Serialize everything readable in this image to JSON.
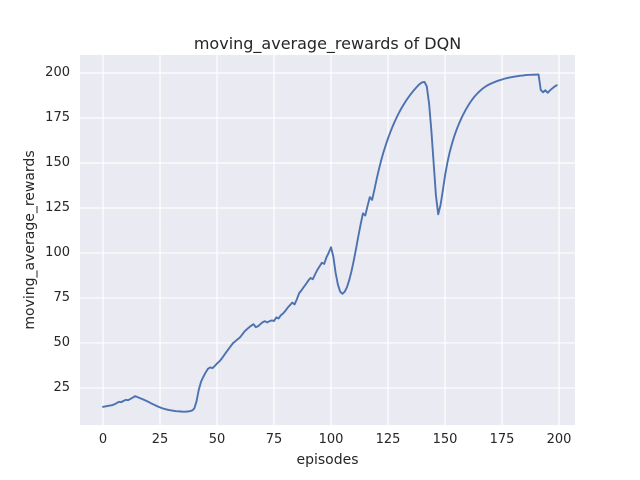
{
  "chart_data": {
    "type": "line",
    "title": "moving_average_rewards of DQN",
    "xlabel": "episodes",
    "ylabel": "moving_average_rewards",
    "xlim": [
      -10.1,
      207.0
    ],
    "ylim": [
      4.4,
      210.0
    ],
    "x_ticks": [
      0,
      25,
      50,
      75,
      100,
      125,
      150,
      175,
      200
    ],
    "y_ticks": [
      25,
      50,
      75,
      100,
      125,
      150,
      175,
      200
    ],
    "grid": true,
    "legend": null,
    "style": {
      "plot_background": "#EAEAF2",
      "figure_background": "#FFFFFF",
      "grid_color": "#FFFFFF",
      "line_color": "#4C72B0",
      "text_color": "#262626"
    },
    "series": [
      {
        "name": "DQN moving average reward",
        "points": [
          [
            0,
            14.5
          ],
          [
            1,
            14.7
          ],
          [
            2,
            15.0
          ],
          [
            3,
            15.2
          ],
          [
            4,
            15.4
          ],
          [
            5,
            15.9
          ],
          [
            6,
            16.6
          ],
          [
            7,
            17.3
          ],
          [
            8,
            17.1
          ],
          [
            9,
            17.8
          ],
          [
            10,
            18.4
          ],
          [
            11,
            18.2
          ],
          [
            12,
            18.9
          ],
          [
            13,
            19.6
          ],
          [
            14,
            20.4
          ],
          [
            15,
            20.0
          ],
          [
            16,
            19.4
          ],
          [
            17,
            18.9
          ],
          [
            18,
            18.4
          ],
          [
            19,
            17.8
          ],
          [
            20,
            17.2
          ],
          [
            21,
            16.5
          ],
          [
            22,
            15.9
          ],
          [
            23,
            15.3
          ],
          [
            24,
            14.7
          ],
          [
            25,
            14.2
          ],
          [
            26,
            13.7
          ],
          [
            27,
            13.3
          ],
          [
            28,
            13.0
          ],
          [
            29,
            12.7
          ],
          [
            30,
            12.5
          ],
          [
            31,
            12.3
          ],
          [
            32,
            12.1
          ],
          [
            33,
            12.0
          ],
          [
            34,
            11.9
          ],
          [
            35,
            11.8
          ],
          [
            36,
            11.8
          ],
          [
            37,
            11.9
          ],
          [
            38,
            12.1
          ],
          [
            39,
            12.4
          ],
          [
            40,
            13.5
          ],
          [
            41,
            17.5
          ],
          [
            42,
            24.0
          ],
          [
            43,
            28.5
          ],
          [
            44,
            31.2
          ],
          [
            45,
            33.6
          ],
          [
            46,
            35.6
          ],
          [
            47,
            36.4
          ],
          [
            48,
            36.0
          ],
          [
            49,
            37.2
          ],
          [
            50,
            38.6
          ],
          [
            51,
            39.7
          ],
          [
            52,
            41.2
          ],
          [
            53,
            43.0
          ],
          [
            54,
            44.8
          ],
          [
            55,
            46.5
          ],
          [
            56,
            48.2
          ],
          [
            57,
            49.9
          ],
          [
            58,
            50.9
          ],
          [
            59,
            52.0
          ],
          [
            60,
            53.0
          ],
          [
            61,
            54.6
          ],
          [
            62,
            56.3
          ],
          [
            63,
            57.5
          ],
          [
            64,
            58.6
          ],
          [
            65,
            59.6
          ],
          [
            66,
            60.4
          ],
          [
            67,
            58.8
          ],
          [
            68,
            59.3
          ],
          [
            69,
            60.4
          ],
          [
            70,
            61.5
          ],
          [
            71,
            62.1
          ],
          [
            72,
            61.4
          ],
          [
            73,
            62.1
          ],
          [
            74,
            62.5
          ],
          [
            75,
            62.2
          ],
          [
            76,
            64.2
          ],
          [
            77,
            63.6
          ],
          [
            78,
            65.4
          ],
          [
            79,
            66.4
          ],
          [
            80,
            67.9
          ],
          [
            81,
            69.6
          ],
          [
            82,
            71.0
          ],
          [
            83,
            72.4
          ],
          [
            84,
            71.4
          ],
          [
            85,
            74.2
          ],
          [
            86,
            77.6
          ],
          [
            87,
            79.2
          ],
          [
            88,
            81.0
          ],
          [
            89,
            82.7
          ],
          [
            90,
            84.6
          ],
          [
            91,
            86.1
          ],
          [
            92,
            85.4
          ],
          [
            93,
            88.1
          ],
          [
            94,
            90.6
          ],
          [
            95,
            92.6
          ],
          [
            96,
            94.6
          ],
          [
            97,
            93.9
          ],
          [
            98,
            97.6
          ],
          [
            99,
            100.2
          ],
          [
            100,
            103.2
          ],
          [
            101,
            98.0
          ],
          [
            102,
            89.0
          ],
          [
            103,
            82.5
          ],
          [
            104,
            78.5
          ],
          [
            105,
            77.3
          ],
          [
            106,
            78.5
          ],
          [
            107,
            81.0
          ],
          [
            108,
            85.0
          ],
          [
            109,
            90.0
          ],
          [
            110,
            96.0
          ],
          [
            111,
            102.5
          ],
          [
            112,
            109.5
          ],
          [
            113,
            116.0
          ],
          [
            114,
            122.0
          ],
          [
            115,
            120.8
          ],
          [
            116,
            126.0
          ],
          [
            117,
            131.0
          ],
          [
            118,
            129.5
          ],
          [
            119,
            135.0
          ],
          [
            120,
            141.0
          ],
          [
            121,
            146.5
          ],
          [
            122,
            151.5
          ],
          [
            123,
            156.0
          ],
          [
            124,
            160.0
          ],
          [
            125,
            163.7
          ],
          [
            126,
            167.1
          ],
          [
            127,
            170.3
          ],
          [
            128,
            173.2
          ],
          [
            129,
            175.9
          ],
          [
            130,
            178.4
          ],
          [
            131,
            180.7
          ],
          [
            132,
            182.8
          ],
          [
            133,
            184.8
          ],
          [
            134,
            186.6
          ],
          [
            135,
            188.3
          ],
          [
            136,
            189.9
          ],
          [
            137,
            191.4
          ],
          [
            138,
            192.8
          ],
          [
            139,
            194.0
          ],
          [
            140,
            194.8
          ],
          [
            141,
            195.0
          ],
          [
            142,
            192.5
          ],
          [
            143,
            183.0
          ],
          [
            144,
            168.0
          ],
          [
            145,
            150.0
          ],
          [
            146,
            132.0
          ],
          [
            147,
            121.5
          ],
          [
            148,
            126.5
          ],
          [
            149,
            134.5
          ],
          [
            150,
            143.0
          ],
          [
            151,
            150.0
          ],
          [
            152,
            155.8
          ],
          [
            153,
            160.5
          ],
          [
            154,
            164.7
          ],
          [
            155,
            168.3
          ],
          [
            156,
            171.5
          ],
          [
            157,
            174.4
          ],
          [
            158,
            177.0
          ],
          [
            159,
            179.4
          ],
          [
            160,
            181.6
          ],
          [
            161,
            183.6
          ],
          [
            162,
            185.4
          ],
          [
            163,
            187.0
          ],
          [
            164,
            188.4
          ],
          [
            165,
            189.7
          ],
          [
            166,
            190.8
          ],
          [
            167,
            191.8
          ],
          [
            168,
            192.7
          ],
          [
            169,
            193.4
          ],
          [
            170,
            194.0
          ],
          [
            171,
            194.6
          ],
          [
            172,
            195.1
          ],
          [
            173,
            195.6
          ],
          [
            174,
            196.0
          ],
          [
            175,
            196.4
          ],
          [
            176,
            196.8
          ],
          [
            177,
            197.1
          ],
          [
            178,
            197.4
          ],
          [
            179,
            197.7
          ],
          [
            180,
            197.9
          ],
          [
            181,
            198.1
          ],
          [
            182,
            198.3
          ],
          [
            183,
            198.5
          ],
          [
            184,
            198.6
          ],
          [
            185,
            198.8
          ],
          [
            186,
            198.9
          ],
          [
            187,
            199.0
          ],
          [
            188,
            199.0
          ],
          [
            189,
            199.1
          ],
          [
            190,
            199.1
          ],
          [
            191,
            199.2
          ],
          [
            192,
            190.5
          ],
          [
            193,
            189.3
          ],
          [
            194,
            190.4
          ],
          [
            195,
            189.0
          ],
          [
            196,
            190.3
          ],
          [
            197,
            191.4
          ],
          [
            198,
            192.4
          ],
          [
            199,
            193.2
          ]
        ]
      }
    ]
  }
}
